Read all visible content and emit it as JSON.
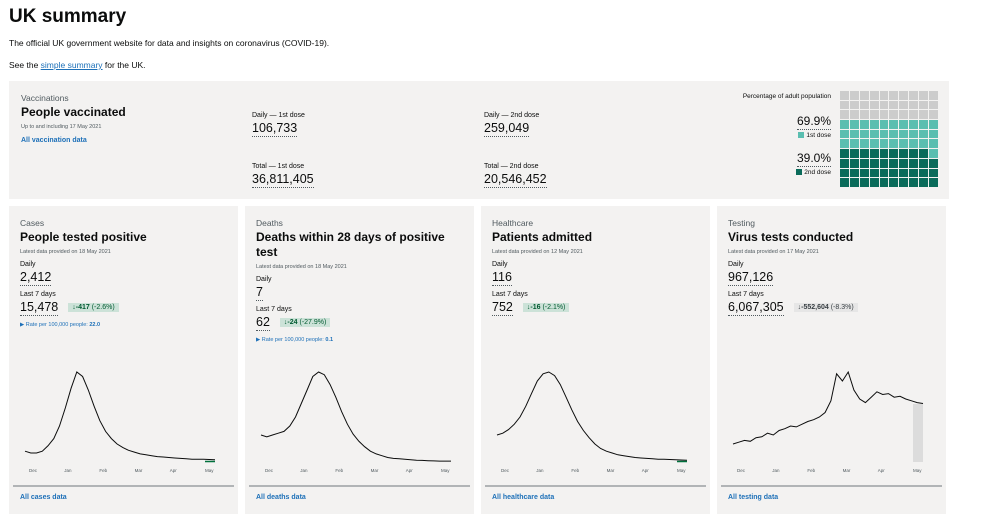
{
  "page": {
    "title": "UK summary",
    "intro": "The official UK government website for data and insights on coronavirus (COVID-19).",
    "see_prefix": "See the ",
    "see_link": "simple summary",
    "see_suffix": " for the UK."
  },
  "vaccinations": {
    "caption": "Vaccinations",
    "title": "People vaccinated",
    "note": "Up to and including 17 May 2021",
    "link": "All vaccination data",
    "daily_first_label": "Daily — 1st dose",
    "daily_first_value": "106,733",
    "total_first_label": "Total — 1st dose",
    "total_first_value": "36,811,405",
    "daily_second_label": "Daily — 2nd dose",
    "daily_second_value": "259,049",
    "total_second_label": "Total — 2nd dose",
    "total_second_value": "20,546,452",
    "pct_heading": "Percentage of adult population",
    "first_pct": "69.9%",
    "first_label": "1st dose",
    "second_pct": "39.0%",
    "second_label": "2nd dose",
    "first_fraction": 0.699,
    "second_fraction": 0.39,
    "colors": {
      "first": "#5abeb0",
      "second": "#0a6b5a",
      "empty": "#cccccc"
    }
  },
  "cards": [
    {
      "caption": "Cases",
      "title": "People tested positive",
      "note": "Latest data provided on 18 May 2021",
      "daily_label": "Daily",
      "daily_value": "2,412",
      "week_label": "Last 7 days",
      "week_value": "15,478",
      "delta": "↓-417",
      "delta_pct": "(-2.6%)",
      "delta_style": "green",
      "rate_text": "▶ Rate per 100,000 people:",
      "rate_value": "22.0",
      "link": "All cases data",
      "months": [
        "Dec",
        "Jan",
        "Feb",
        "Mar",
        "Apr",
        "May"
      ],
      "series": [
        0.12,
        0.1,
        0.1,
        0.12,
        0.18,
        0.26,
        0.4,
        0.6,
        0.82,
        1.0,
        0.95,
        0.8,
        0.62,
        0.46,
        0.34,
        0.26,
        0.2,
        0.16,
        0.13,
        0.11,
        0.09,
        0.08,
        0.07,
        0.06,
        0.055,
        0.05,
        0.045,
        0.04,
        0.035,
        0.03,
        0.03,
        0.03,
        0.028,
        0.025
      ]
    },
    {
      "caption": "Deaths",
      "title": "Deaths within 28 days of positive test",
      "note": "Latest data provided on 18 May 2021",
      "daily_label": "Daily",
      "daily_value": "7",
      "week_label": "Last 7 days",
      "week_value": "62",
      "delta": "↓-24",
      "delta_pct": "(-27.9%)",
      "delta_style": "green",
      "rate_text": "▶ Rate per 100,000 people:",
      "rate_value": "0.1",
      "link": "All deaths data",
      "months": [
        "Dec",
        "Jan",
        "Feb",
        "Mar",
        "Apr",
        "May"
      ],
      "series": [
        0.3,
        0.28,
        0.3,
        0.32,
        0.34,
        0.4,
        0.5,
        0.65,
        0.8,
        0.95,
        1.0,
        0.97,
        0.86,
        0.72,
        0.56,
        0.42,
        0.31,
        0.23,
        0.17,
        0.12,
        0.09,
        0.07,
        0.05,
        0.04,
        0.035,
        0.03,
        0.025,
        0.02,
        0.018,
        0.015,
        0.012,
        0.01,
        0.01,
        0.01
      ]
    },
    {
      "caption": "Healthcare",
      "title": "Patients admitted",
      "note": "Latest data provided on 12 May 2021",
      "daily_label": "Daily",
      "daily_value": "116",
      "week_label": "Last 7 days",
      "week_value": "752",
      "delta": "↓-16",
      "delta_pct": "(-2.1%)",
      "delta_style": "green",
      "rate_text": "",
      "rate_value": "",
      "link": "All healthcare data",
      "months": [
        "Dec",
        "Jan",
        "Feb",
        "Mar",
        "Apr",
        "May"
      ],
      "series": [
        0.3,
        0.32,
        0.36,
        0.42,
        0.5,
        0.62,
        0.76,
        0.9,
        0.98,
        1.0,
        0.96,
        0.86,
        0.72,
        0.58,
        0.45,
        0.35,
        0.27,
        0.2,
        0.15,
        0.12,
        0.1,
        0.08,
        0.07,
        0.06,
        0.05,
        0.045,
        0.04,
        0.035,
        0.03,
        0.03,
        0.028,
        0.025,
        0.022,
        0.02
      ]
    },
    {
      "caption": "Testing",
      "title": "Virus tests conducted",
      "note": "Latest data provided on 17 May 2021",
      "daily_label": "Daily",
      "daily_value": "967,126",
      "week_label": "Last 7 days",
      "week_value": "6,067,305",
      "delta": "↓-552,604",
      "delta_pct": "(-8.3%)",
      "delta_style": "grey",
      "rate_text": "",
      "rate_value": "",
      "link": "All testing data",
      "months": [
        "Dec",
        "Jan",
        "Feb",
        "Mar",
        "Apr",
        "May"
      ],
      "series": [
        0.2,
        0.22,
        0.24,
        0.23,
        0.27,
        0.28,
        0.32,
        0.3,
        0.35,
        0.37,
        0.4,
        0.39,
        0.42,
        0.45,
        0.47,
        0.5,
        0.55,
        0.68,
        0.98,
        0.9,
        1.0,
        0.8,
        0.7,
        0.66,
        0.72,
        0.78,
        0.75,
        0.76,
        0.72,
        0.73,
        0.7,
        0.68,
        0.66,
        0.65
      ]
    }
  ]
}
